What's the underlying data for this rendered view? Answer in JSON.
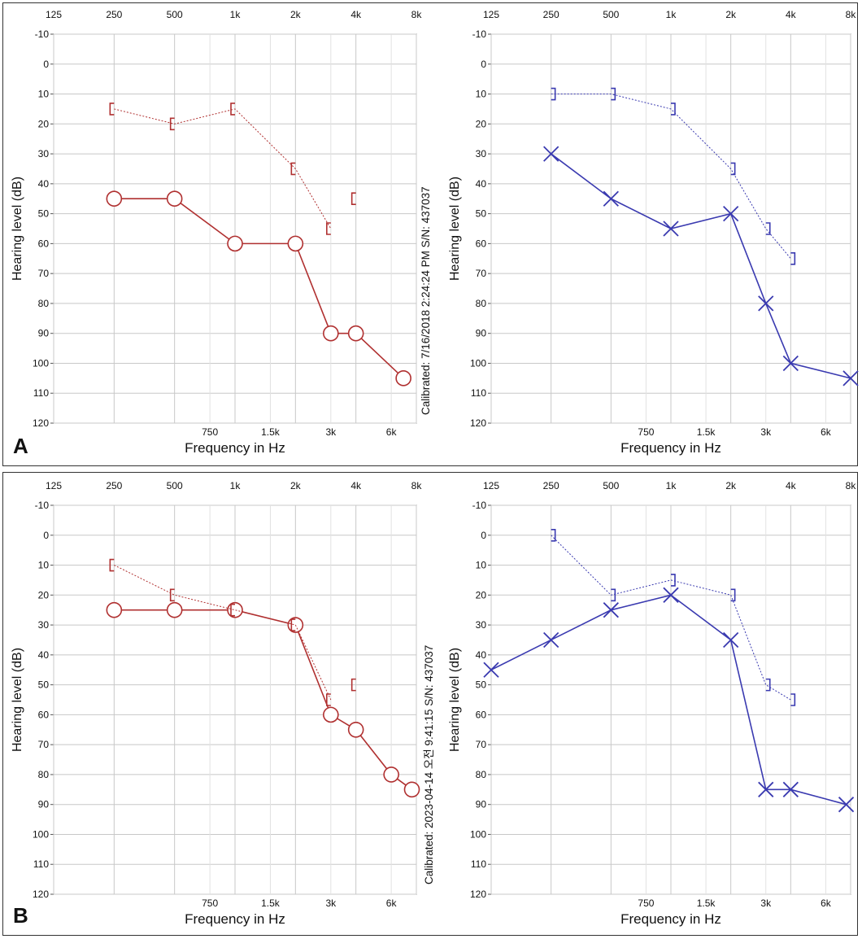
{
  "panels": [
    {
      "letter": "A",
      "calibration": "Calibrated: 7/16/2018 2:24:24 PM  S/N: 437037"
    },
    {
      "letter": "B",
      "calibration": "Calibrated: 2023-04-14 오전 9:41:15  S/N: 437037"
    }
  ],
  "colors": {
    "left_ear": "#b03030",
    "right_ear": "#3a3ab0",
    "grid": "#c8c8c8",
    "axis": "#111111"
  },
  "chart_data": [
    {
      "type": "line",
      "panel": "A",
      "ear": "left",
      "xlabel": "Frequency in Hz",
      "ylabel": "Hearing level (dB)",
      "x_scale": "log",
      "x_top_ticks": [
        125,
        250,
        500,
        1000,
        2000,
        4000,
        8000
      ],
      "x_top_tick_labels": [
        "125",
        "250",
        "500",
        "1k",
        "2k",
        "4k",
        "8k"
      ],
      "x_bottom_ticks": [
        750,
        1500,
        3000,
        6000
      ],
      "x_bottom_tick_labels": [
        "750",
        "1.5k",
        "3k",
        "6k"
      ],
      "y_ticks": [
        -10,
        0,
        10,
        20,
        30,
        40,
        50,
        60,
        70,
        80,
        90,
        100,
        110,
        120
      ],
      "ylim": [
        -10,
        120
      ],
      "y_inverted": true,
      "grid": true,
      "series": [
        {
          "marker": "circle",
          "line": "solid",
          "x": [
            250,
            500,
            1000,
            2000,
            3000,
            4000,
            6900
          ],
          "y": [
            45,
            45,
            60,
            60,
            90,
            90,
            105
          ]
        },
        {
          "marker": "bracket-left",
          "line": "dashed",
          "x": [
            250,
            500,
            1000,
            2000,
            3000
          ],
          "y": [
            15,
            20,
            15,
            35,
            55
          ]
        },
        {
          "marker": "bracket-left",
          "line": "none",
          "x": [
            4000
          ],
          "y": [
            45
          ]
        }
      ]
    },
    {
      "type": "line",
      "panel": "A",
      "ear": "right",
      "xlabel": "Frequency in Hz",
      "ylabel": "Hearing level (dB)",
      "x_scale": "log",
      "x_top_ticks": [
        125,
        250,
        500,
        1000,
        2000,
        4000,
        8000
      ],
      "x_top_tick_labels": [
        "125",
        "250",
        "500",
        "1k",
        "2k",
        "4k",
        "8k"
      ],
      "x_bottom_ticks": [
        750,
        1500,
        3000,
        6000
      ],
      "x_bottom_tick_labels": [
        "750",
        "1.5k",
        "3k",
        "6k"
      ],
      "y_ticks": [
        -10,
        0,
        10,
        20,
        30,
        40,
        50,
        60,
        70,
        80,
        90,
        100,
        110,
        120
      ],
      "ylim": [
        -10,
        120
      ],
      "y_inverted": true,
      "grid": true,
      "series": [
        {
          "marker": "x",
          "line": "solid",
          "x": [
            250,
            500,
            1000,
            2000,
            3000,
            4000,
            8000
          ],
          "y": [
            30,
            45,
            55,
            50,
            80,
            100,
            105
          ]
        },
        {
          "marker": "bracket-right",
          "line": "dashed",
          "x": [
            250,
            500,
            1000,
            2000,
            3000,
            4000
          ],
          "y": [
            10,
            10,
            15,
            35,
            55,
            65
          ]
        }
      ]
    },
    {
      "type": "line",
      "panel": "B",
      "ear": "left",
      "xlabel": "Frequency in Hz",
      "ylabel": "Hearing level (dB)",
      "x_scale": "log",
      "x_top_ticks": [
        125,
        250,
        500,
        1000,
        2000,
        4000,
        8000
      ],
      "x_top_tick_labels": [
        "125",
        "250",
        "500",
        "1k",
        "2k",
        "4k",
        "8k"
      ],
      "x_bottom_ticks": [
        750,
        1500,
        3000,
        6000
      ],
      "x_bottom_tick_labels": [
        "750",
        "1.5k",
        "3k",
        "6k"
      ],
      "y_ticks": [
        -10,
        0,
        10,
        20,
        30,
        40,
        50,
        60,
        70,
        80,
        90,
        100,
        110,
        120
      ],
      "ylim": [
        -10,
        120
      ],
      "y_inverted": true,
      "grid": true,
      "series": [
        {
          "marker": "circle",
          "line": "solid",
          "x": [
            250,
            500,
            1000,
            2000,
            3000,
            4000,
            6000,
            7600
          ],
          "y": [
            25,
            25,
            25,
            30,
            60,
            65,
            80,
            85
          ]
        },
        {
          "marker": "bracket-left",
          "line": "dashed",
          "x": [
            250,
            500,
            1000,
            2000,
            3000
          ],
          "y": [
            10,
            20,
            25,
            30,
            55
          ]
        },
        {
          "marker": "bracket-left",
          "line": "none",
          "x": [
            4000
          ],
          "y": [
            50
          ]
        }
      ]
    },
    {
      "type": "line",
      "panel": "B",
      "ear": "right",
      "xlabel": "Frequency in Hz",
      "ylabel": "Hearing level (dB)",
      "x_scale": "log",
      "x_top_ticks": [
        125,
        250,
        500,
        1000,
        2000,
        4000,
        8000
      ],
      "x_top_tick_labels": [
        "125",
        "250",
        "500",
        "1k",
        "2k",
        "4k",
        "8k"
      ],
      "x_bottom_ticks": [
        750,
        1500,
        3000,
        6000
      ],
      "x_bottom_tick_labels": [
        "750",
        "1.5k",
        "3k",
        "6k"
      ],
      "y_ticks": [
        -10,
        0,
        10,
        20,
        30,
        40,
        50,
        60,
        70,
        80,
        90,
        100,
        110,
        120
      ],
      "ylim": [
        -10,
        120
      ],
      "y_inverted": true,
      "grid": true,
      "series": [
        {
          "marker": "x",
          "line": "solid",
          "x": [
            125,
            250,
            500,
            1000,
            2000,
            3000,
            4000,
            7600
          ],
          "y": [
            45,
            35,
            25,
            20,
            35,
            85,
            85,
            90
          ]
        },
        {
          "marker": "bracket-right",
          "line": "dashed",
          "x": [
            250,
            500,
            1000,
            2000,
            3000,
            4000
          ],
          "y": [
            0,
            20,
            15,
            20,
            50,
            55
          ]
        }
      ]
    }
  ]
}
